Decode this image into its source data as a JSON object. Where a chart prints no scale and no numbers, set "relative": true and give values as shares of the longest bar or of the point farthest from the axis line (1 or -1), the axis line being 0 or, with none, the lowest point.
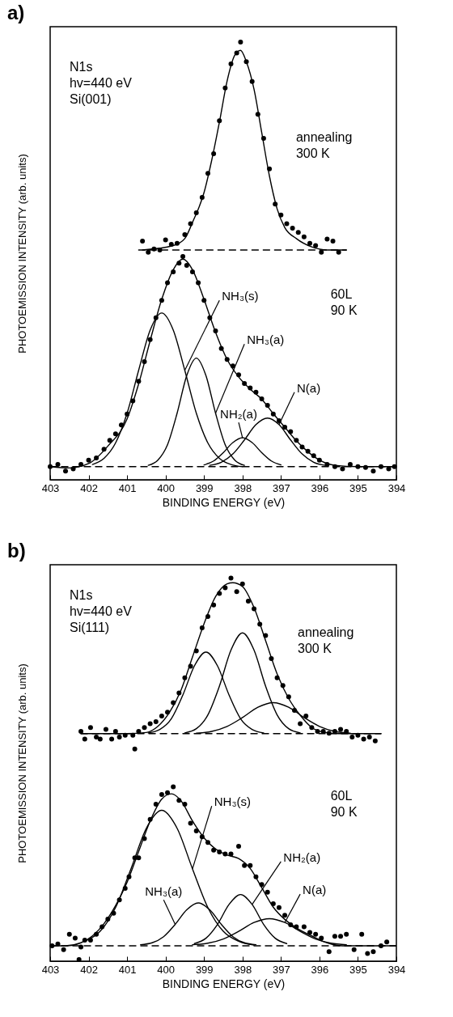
{
  "chart_data": [
    {
      "type": "line",
      "title": "a)",
      "xlabel": "BINDING ENERGY (eV)",
      "ylabel": "PHOTOEMISSION INTENSITY (arb. units)",
      "relative": true,
      "xlim": [
        403,
        394
      ],
      "xticks": [
        403,
        402,
        401,
        400,
        399,
        398,
        397,
        396,
        395,
        394
      ],
      "annotations": [
        "N1s\nhv=440 eV\nSi(001)",
        "annealing\n300 K",
        "60L\n90 K"
      ],
      "series": [
        {
          "type": "line",
          "color": "#000000",
          "line_style": "dashed",
          "x": [
            400.7,
            395.3
          ],
          "values": [
            0.525,
            0.525
          ]
        },
        {
          "type": "line",
          "color": "#000000",
          "line_style": "dashed",
          "x": [
            403,
            394
          ],
          "values": [
            0.03,
            0.03
          ]
        },
        {
          "type": "line",
          "color": "#000000",
          "line_style": "solid",
          "x": [
            400.6,
            399.8,
            399.5,
            399.3,
            399.0,
            398.8,
            398.6,
            398.4,
            398.2,
            398.05,
            397.9,
            397.7,
            397.5,
            397.3,
            397.1,
            396.9,
            396.6,
            396.2,
            395.8,
            395.3
          ],
          "values": [
            0.525,
            0.535,
            0.551,
            0.588,
            0.656,
            0.73,
            0.817,
            0.911,
            0.97,
            0.981,
            0.955,
            0.892,
            0.793,
            0.694,
            0.619,
            0.576,
            0.551,
            0.532,
            0.525,
            0.525
          ]
        },
        {
          "type": "line",
          "color": "#000000",
          "line_style": "solid",
          "x": [
            403,
            402.5,
            402.0,
            401.5,
            401.0,
            400.7,
            400.4,
            400.1,
            399.8,
            399.55,
            399.3,
            399.0,
            398.7,
            398.4,
            398.1,
            397.8,
            397.5,
            397.2,
            396.9,
            396.6,
            396.3,
            396.0,
            395.6,
            395.0,
            394
          ],
          "values": [
            0.03,
            0.027,
            0.037,
            0.077,
            0.139,
            0.219,
            0.318,
            0.412,
            0.48,
            0.504,
            0.48,
            0.412,
            0.337,
            0.275,
            0.235,
            0.207,
            0.184,
            0.151,
            0.12,
            0.089,
            0.064,
            0.045,
            0.033,
            0.03,
            0.03
          ]
        },
        {
          "type": "line",
          "name": "NH₃(s)",
          "color": "#000000",
          "line_style": "solid",
          "x": [
            401.9,
            401.6,
            401.3,
            401.0,
            400.7,
            400.4,
            400.1,
            399.8,
            399.5,
            399.2,
            398.9,
            398.6,
            398.3,
            398.0
          ],
          "values": [
            0.035,
            0.049,
            0.084,
            0.152,
            0.25,
            0.342,
            0.381,
            0.342,
            0.25,
            0.152,
            0.084,
            0.049,
            0.035,
            0.03
          ]
        },
        {
          "type": "line",
          "name": "NH₃(a)",
          "color": "#000000",
          "line_style": "solid",
          "x": [
            400.45,
            400.2,
            399.95,
            399.7,
            399.45,
            399.2,
            398.95,
            398.7,
            398.45,
            398.2,
            397.95
          ],
          "values": [
            0.033,
            0.045,
            0.08,
            0.152,
            0.238,
            0.278,
            0.238,
            0.152,
            0.08,
            0.045,
            0.033
          ]
        },
        {
          "type": "line",
          "name": "N(a)",
          "color": "#000000",
          "line_style": "solid",
          "x": [
            398.85,
            398.55,
            398.25,
            397.95,
            397.65,
            397.35,
            397.05,
            396.75,
            396.45,
            396.15,
            395.85
          ],
          "values": [
            0.033,
            0.04,
            0.059,
            0.091,
            0.126,
            0.141,
            0.126,
            0.091,
            0.059,
            0.04,
            0.033
          ]
        },
        {
          "type": "line",
          "name": "NH₂(a)",
          "color": "#000000",
          "line_style": "solid",
          "x": [
            399.0,
            398.75,
            398.5,
            398.25,
            398.0,
            397.75,
            397.5,
            397.25,
            397.0
          ],
          "values": [
            0.034,
            0.043,
            0.062,
            0.085,
            0.096,
            0.085,
            0.062,
            0.043,
            0.034
          ]
        },
        {
          "type": "scatter",
          "color": "#000000",
          "marker": "circle",
          "x": [
            400.6,
            400.45,
            400.3,
            400.15,
            400.0,
            399.85,
            399.7,
            399.5,
            399.35,
            399.2,
            399.05,
            398.9,
            398.75,
            398.6,
            398.45,
            398.3,
            398.15,
            398.05,
            397.9,
            397.75,
            397.6,
            397.45,
            397.3,
            397.15,
            397.0,
            396.85,
            396.7,
            396.55,
            396.4,
            396.25,
            396.1,
            395.95,
            395.8,
            395.65,
            395.5
          ],
          "values": [
            0.545,
            0.52,
            0.527,
            0.525,
            0.548,
            0.538,
            0.54,
            0.56,
            0.585,
            0.61,
            0.645,
            0.7,
            0.745,
            0.82,
            0.895,
            0.95,
            0.975,
            1.0,
            0.955,
            0.91,
            0.835,
            0.78,
            0.71,
            0.63,
            0.605,
            0.585,
            0.575,
            0.565,
            0.555,
            0.54,
            0.535,
            0.52,
            0.55,
            0.545,
            0.52
          ]
        },
        {
          "type": "scatter",
          "color": "#000000",
          "marker": "circle",
          "x": [
            403.0,
            402.8,
            402.6,
            402.4,
            402.2,
            402.0,
            401.8,
            401.6,
            401.45,
            401.3,
            401.15,
            401.0,
            400.85,
            400.7,
            400.55,
            400.4,
            400.25,
            400.1,
            399.95,
            399.8,
            399.65,
            399.55,
            399.45,
            399.3,
            399.15,
            399.0,
            398.85,
            398.7,
            398.55,
            398.4,
            398.25,
            398.1,
            397.95,
            397.8,
            397.65,
            397.5,
            397.35,
            397.2,
            397.05,
            396.9,
            396.75,
            396.6,
            396.45,
            396.3,
            396.15,
            396.0,
            395.8,
            395.6,
            395.4,
            395.2,
            395.0,
            394.8,
            394.6,
            394.4,
            394.2,
            394.05
          ],
          "values": [
            0.03,
            0.035,
            0.02,
            0.025,
            0.035,
            0.045,
            0.05,
            0.07,
            0.09,
            0.105,
            0.125,
            0.15,
            0.18,
            0.225,
            0.27,
            0.32,
            0.37,
            0.41,
            0.45,
            0.475,
            0.495,
            0.51,
            0.49,
            0.475,
            0.45,
            0.41,
            0.37,
            0.34,
            0.3,
            0.275,
            0.26,
            0.24,
            0.22,
            0.21,
            0.2,
            0.185,
            0.17,
            0.15,
            0.135,
            0.12,
            0.11,
            0.09,
            0.075,
            0.065,
            0.055,
            0.045,
            0.035,
            0.03,
            0.025,
            0.035,
            0.03,
            0.028,
            0.02,
            0.03,
            0.025,
            0.03
          ]
        }
      ]
    },
    {
      "type": "line",
      "title": "b)",
      "xlabel": "BINDING ENERGY (eV)",
      "ylabel": "PHOTOEMISSION INTENSITY (arb. units)",
      "relative": true,
      "xlim": [
        403,
        394
      ],
      "xticks": [
        403,
        402,
        401,
        400,
        399,
        398,
        397,
        396,
        395,
        394
      ],
      "annotations": [
        "N1s\nhv=440 eV\nSi(111)",
        "annealing\n300 K",
        "60L\n90 K"
      ],
      "series": [
        {
          "type": "line",
          "color": "#000000",
          "line_style": "dashed",
          "x": [
            402.2,
            394.4
          ],
          "values": [
            0.594,
            0.594
          ]
        },
        {
          "type": "line",
          "color": "#000000",
          "line_style": "dashed",
          "x": [
            403,
            394
          ],
          "values": [
            0.04,
            0.04
          ]
        },
        {
          "type": "line",
          "color": "#000000",
          "line_style": "solid",
          "x": [
            402.2,
            401.0,
            400.5,
            400.2,
            399.9,
            399.6,
            399.3,
            399.0,
            398.7,
            398.4,
            398.25,
            398.0,
            397.7,
            397.4,
            397.1,
            396.8,
            396.5,
            396.2,
            395.9,
            395.5,
            394.4
          ],
          "values": [
            0.594,
            0.594,
            0.597,
            0.613,
            0.649,
            0.707,
            0.794,
            0.881,
            0.952,
            0.985,
            0.988,
            0.978,
            0.923,
            0.837,
            0.75,
            0.686,
            0.642,
            0.61,
            0.598,
            0.594,
            0.594
          ]
        },
        {
          "type": "line",
          "color": "#000000",
          "line_style": "solid",
          "x": [
            400.45,
            400.15,
            399.85,
            399.55,
            399.25,
            398.95,
            398.65,
            398.35,
            398.05,
            397.75,
            397.45
          ],
          "values": [
            0.596,
            0.605,
            0.633,
            0.695,
            0.771,
            0.807,
            0.771,
            0.695,
            0.633,
            0.605,
            0.596
          ]
        },
        {
          "type": "line",
          "color": "#000000",
          "line_style": "solid",
          "x": [
            399.5,
            399.2,
            398.9,
            398.6,
            398.3,
            398.0,
            397.7,
            397.4,
            397.1,
            396.8,
            396.5
          ],
          "values": [
            0.596,
            0.607,
            0.643,
            0.718,
            0.812,
            0.857,
            0.812,
            0.718,
            0.643,
            0.607,
            0.596
          ]
        },
        {
          "type": "line",
          "color": "#000000",
          "line_style": "solid",
          "x": [
            399.2,
            398.8,
            398.4,
            398.0,
            397.6,
            397.2,
            396.8,
            396.4,
            396.0,
            395.6,
            395.2
          ],
          "values": [
            0.595,
            0.6,
            0.613,
            0.636,
            0.663,
            0.675,
            0.663,
            0.636,
            0.613,
            0.6,
            0.595
          ]
        },
        {
          "type": "line",
          "color": "#000000",
          "line_style": "solid",
          "x": [
            403,
            402.6,
            402.2,
            401.9,
            401.6,
            401.3,
            401.0,
            400.7,
            400.4,
            400.1,
            399.85,
            399.6,
            399.3,
            399.0,
            398.7,
            398.4,
            398.1,
            397.8,
            397.5,
            397.2,
            396.9,
            396.6,
            396.2,
            395.8,
            395.4,
            394
          ],
          "values": [
            0.04,
            0.04,
            0.048,
            0.066,
            0.098,
            0.145,
            0.206,
            0.286,
            0.366,
            0.423,
            0.437,
            0.419,
            0.366,
            0.322,
            0.293,
            0.277,
            0.268,
            0.242,
            0.192,
            0.141,
            0.109,
            0.087,
            0.066,
            0.048,
            0.04,
            0.04
          ]
        },
        {
          "type": "line",
          "name": "NH₃(s)",
          "color": "#000000",
          "line_style": "solid",
          "x": [
            402.1,
            401.7,
            401.3,
            400.9,
            400.5,
            400.1,
            399.7,
            399.3,
            398.9,
            398.5,
            398.1,
            397.7
          ],
          "values": [
            0.052,
            0.078,
            0.14,
            0.241,
            0.347,
            0.394,
            0.347,
            0.241,
            0.14,
            0.078,
            0.052,
            0.042
          ]
        },
        {
          "type": "line",
          "name": "NH₃(a)",
          "color": "#000000",
          "line_style": "solid",
          "x": [
            400.65,
            400.35,
            400.05,
            399.75,
            399.45,
            399.15,
            398.85,
            398.55,
            398.25,
            397.95,
            397.65
          ],
          "values": [
            0.043,
            0.048,
            0.064,
            0.096,
            0.134,
            0.152,
            0.134,
            0.096,
            0.064,
            0.048,
            0.043
          ]
        },
        {
          "type": "line",
          "name": "NH₂(a)",
          "color": "#000000",
          "line_style": "solid",
          "x": [
            399.25,
            398.95,
            398.65,
            398.35,
            398.05,
            397.75,
            397.45,
            397.15,
            396.85
          ],
          "values": [
            0.046,
            0.06,
            0.096,
            0.148,
            0.174,
            0.148,
            0.096,
            0.06,
            0.046
          ]
        },
        {
          "type": "line",
          "name": "N(a)",
          "color": "#000000",
          "line_style": "solid",
          "x": [
            399.3,
            398.9,
            398.5,
            398.1,
            397.7,
            397.3,
            396.9,
            396.5,
            396.1,
            395.7,
            395.3
          ],
          "values": [
            0.043,
            0.047,
            0.058,
            0.078,
            0.101,
            0.111,
            0.101,
            0.078,
            0.058,
            0.047,
            0.043
          ]
        },
        {
          "type": "scatter",
          "color": "#000000",
          "marker": "circle",
          "x": [
            402.2,
            402.1,
            401.95,
            401.8,
            401.7,
            401.55,
            401.4,
            401.3,
            401.2,
            401.05,
            400.8,
            400.85,
            400.7,
            400.55,
            400.4,
            400.25,
            400.1,
            399.95,
            399.8,
            399.65,
            399.5,
            399.35,
            399.2,
            399.05,
            398.9,
            398.75,
            398.6,
            398.45,
            398.3,
            398.15,
            398.0,
            397.85,
            397.7,
            397.55,
            397.4,
            397.25,
            397.1,
            396.95,
            396.8,
            396.65,
            396.5,
            396.35,
            396.2,
            396.05,
            395.9,
            395.75,
            395.6,
            395.45,
            395.3,
            395.15,
            395.0,
            394.85,
            394.7,
            394.55
          ],
          "values": [
            0.6,
            0.58,
            0.61,
            0.585,
            0.58,
            0.605,
            0.58,
            0.6,
            0.585,
            0.59,
            0.554,
            0.59,
            0.6,
            0.61,
            0.62,
            0.625,
            0.64,
            0.65,
            0.675,
            0.7,
            0.74,
            0.77,
            0.81,
            0.87,
            0.9,
            0.93,
            0.96,
            0.975,
            1.0,
            0.965,
            0.985,
            0.94,
            0.92,
            0.88,
            0.85,
            0.79,
            0.74,
            0.72,
            0.69,
            0.655,
            0.62,
            0.64,
            0.61,
            0.6,
            0.6,
            0.595,
            0.6,
            0.605,
            0.6,
            0.585,
            0.59,
            0.58,
            0.585,
            0.575
          ]
        },
        {
          "type": "scatter",
          "color": "#000000",
          "marker": "circle",
          "x": [
            402.95,
            402.8,
            402.65,
            402.5,
            402.35,
            402.25,
            402.2,
            402.1,
            401.95,
            401.8,
            401.65,
            401.5,
            401.35,
            401.2,
            401.05,
            400.95,
            400.8,
            400.7,
            400.55,
            400.4,
            400.25,
            400.1,
            399.95,
            399.8,
            399.65,
            399.5,
            399.35,
            399.2,
            399.05,
            398.9,
            398.75,
            398.6,
            398.45,
            398.3,
            398.1,
            397.95,
            397.8,
            397.65,
            397.5,
            397.35,
            397.2,
            397.05,
            396.9,
            396.75,
            396.6,
            396.4,
            396.25,
            396.1,
            395.95,
            395.75,
            395.6,
            395.45,
            395.3,
            395.1,
            394.9,
            394.75,
            394.6,
            394.4,
            394.25
          ],
          "values": [
            0.04,
            0.045,
            0.03,
            0.07,
            0.06,
            0.004,
            0.037,
            0.055,
            0.055,
            0.07,
            0.09,
            0.11,
            0.125,
            0.16,
            0.19,
            0.22,
            0.27,
            0.27,
            0.32,
            0.37,
            0.41,
            0.435,
            0.44,
            0.455,
            0.42,
            0.41,
            0.36,
            0.34,
            0.325,
            0.31,
            0.29,
            0.285,
            0.28,
            0.28,
            0.3,
            0.25,
            0.25,
            0.22,
            0.2,
            0.18,
            0.15,
            0.14,
            0.12,
            0.095,
            0.09,
            0.09,
            0.075,
            0.07,
            0.06,
            0.025,
            0.065,
            0.065,
            0.07,
            0.03,
            0.07,
            0.02,
            0.025,
            0.04,
            0.05
          ]
        }
      ]
    }
  ]
}
